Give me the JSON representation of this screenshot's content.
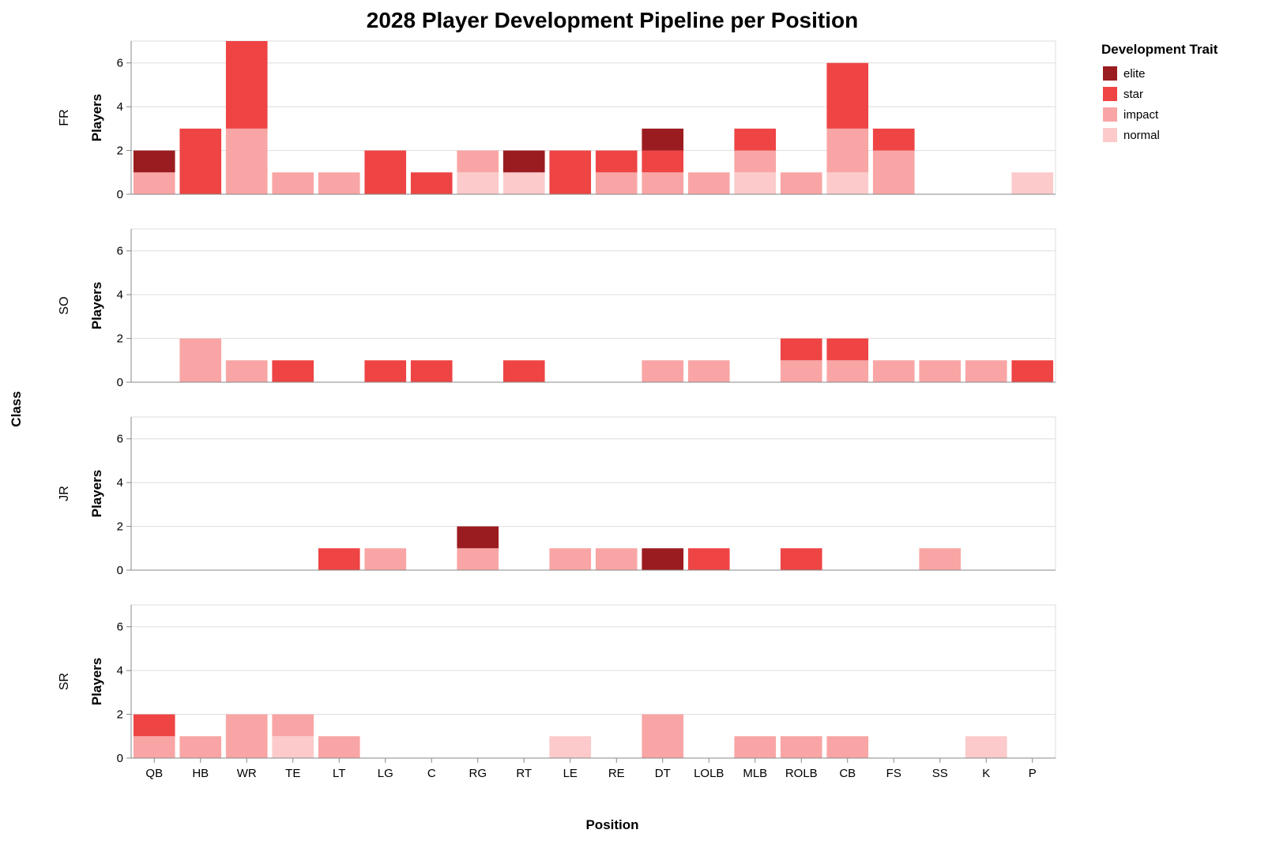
{
  "chart_data": {
    "type": "bar",
    "stacked": true,
    "title": "2028 Player Development Pipeline per Position",
    "xlabel": "Position",
    "ylabel": "Players",
    "row_title": "Class",
    "rows": [
      "FR",
      "SO",
      "JR",
      "SR"
    ],
    "categories": [
      "QB",
      "HB",
      "WR",
      "TE",
      "LT",
      "LG",
      "C",
      "RG",
      "RT",
      "LE",
      "RE",
      "DT",
      "LOLB",
      "MLB",
      "ROLB",
      "CB",
      "FS",
      "SS",
      "K",
      "P"
    ],
    "ylim": [
      0,
      7
    ],
    "yticks": [
      0,
      2,
      4,
      6
    ],
    "grid": true,
    "legend": {
      "title": "Development Trait",
      "position": "top-right",
      "entries": [
        {
          "name": "elite",
          "color": "#9b1c20"
        },
        {
          "name": "star",
          "color": "#ee4444"
        },
        {
          "name": "impact",
          "color": "#f9a5a5"
        },
        {
          "name": "normal",
          "color": "#fccaca"
        }
      ]
    },
    "stack_order": [
      "normal",
      "impact",
      "star",
      "elite"
    ],
    "panels": [
      {
        "class": "FR",
        "series": [
          {
            "name": "normal",
            "values": [
              0,
              0,
              0,
              0,
              0,
              0,
              0,
              1,
              1,
              0,
              0,
              0,
              0,
              1,
              0,
              1,
              0,
              0,
              0,
              1
            ]
          },
          {
            "name": "impact",
            "values": [
              1,
              0,
              3,
              1,
              1,
              0,
              0,
              1,
              0,
              0,
              1,
              1,
              1,
              1,
              1,
              2,
              2,
              0,
              0,
              0
            ]
          },
          {
            "name": "star",
            "values": [
              0,
              3,
              4,
              0,
              0,
              2,
              1,
              0,
              0,
              2,
              1,
              1,
              0,
              1,
              0,
              3,
              1,
              0,
              0,
              0
            ]
          },
          {
            "name": "elite",
            "values": [
              1,
              0,
              0,
              0,
              0,
              0,
              0,
              0,
              1,
              0,
              0,
              1,
              0,
              0,
              0,
              0,
              0,
              0,
              0,
              0
            ]
          }
        ]
      },
      {
        "class": "SO",
        "series": [
          {
            "name": "normal",
            "values": [
              0,
              0,
              0,
              0,
              0,
              0,
              0,
              0,
              0,
              0,
              0,
              0,
              0,
              0,
              0,
              0,
              0,
              0,
              0,
              0
            ]
          },
          {
            "name": "impact",
            "values": [
              0,
              2,
              1,
              0,
              0,
              0,
              0,
              0,
              0,
              0,
              0,
              1,
              1,
              0,
              1,
              1,
              1,
              1,
              1,
              0
            ]
          },
          {
            "name": "star",
            "values": [
              0,
              0,
              0,
              1,
              0,
              1,
              1,
              0,
              1,
              0,
              0,
              0,
              0,
              0,
              1,
              1,
              0,
              0,
              0,
              1
            ]
          },
          {
            "name": "elite",
            "values": [
              0,
              0,
              0,
              0,
              0,
              0,
              0,
              0,
              0,
              0,
              0,
              0,
              0,
              0,
              0,
              0,
              0,
              0,
              0,
              0
            ]
          }
        ]
      },
      {
        "class": "JR",
        "series": [
          {
            "name": "normal",
            "values": [
              0,
              0,
              0,
              0,
              0,
              0,
              0,
              0,
              0,
              0,
              0,
              0,
              0,
              0,
              0,
              0,
              0,
              0,
              0,
              0
            ]
          },
          {
            "name": "impact",
            "values": [
              0,
              0,
              0,
              0,
              0,
              1,
              0,
              1,
              0,
              1,
              1,
              0,
              0,
              0,
              0,
              0,
              0,
              1,
              0,
              0
            ]
          },
          {
            "name": "star",
            "values": [
              0,
              0,
              0,
              0,
              1,
              0,
              0,
              0,
              0,
              0,
              0,
              0,
              1,
              0,
              1,
              0,
              0,
              0,
              0,
              0
            ]
          },
          {
            "name": "elite",
            "values": [
              0,
              0,
              0,
              0,
              0,
              0,
              0,
              1,
              0,
              0,
              0,
              1,
              0,
              0,
              0,
              0,
              0,
              0,
              0,
              0
            ]
          }
        ]
      },
      {
        "class": "SR",
        "series": [
          {
            "name": "normal",
            "values": [
              0,
              0,
              0,
              1,
              0,
              0,
              0,
              0,
              0,
              1,
              0,
              0,
              0,
              0,
              0,
              0,
              0,
              0,
              1,
              0
            ]
          },
          {
            "name": "impact",
            "values": [
              1,
              1,
              2,
              1,
              1,
              0,
              0,
              0,
              0,
              0,
              0,
              2,
              0,
              1,
              1,
              1,
              0,
              0,
              0,
              0
            ]
          },
          {
            "name": "star",
            "values": [
              1,
              0,
              0,
              0,
              0,
              0,
              0,
              0,
              0,
              0,
              0,
              0,
              0,
              0,
              0,
              0,
              0,
              0,
              0,
              0
            ]
          },
          {
            "name": "elite",
            "values": [
              0,
              0,
              0,
              0,
              0,
              0,
              0,
              0,
              0,
              0,
              0,
              0,
              0,
              0,
              0,
              0,
              0,
              0,
              0,
              0
            ]
          }
        ]
      }
    ]
  }
}
